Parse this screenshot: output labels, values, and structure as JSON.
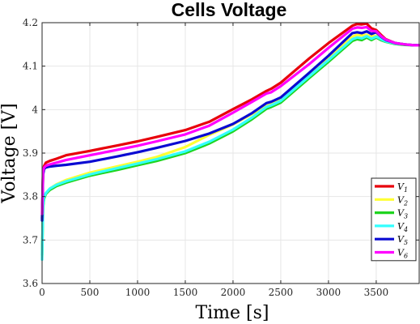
{
  "chart_data": {
    "type": "line",
    "title": "Cells Voltage",
    "xlabel": "Time [s]",
    "ylabel": "Voltage [V]",
    "xlim": [
      0,
      3950
    ],
    "ylim": [
      3.6,
      4.2
    ],
    "xticks": [
      0,
      500,
      1000,
      1500,
      2000,
      2500,
      3000,
      3500
    ],
    "yticks": [
      3.6,
      3.7,
      3.8,
      3.9,
      4.0,
      4.1,
      4.2
    ],
    "xtick_labels": [
      "0",
      "500",
      "1000",
      "1500",
      "2000",
      "2500",
      "3000",
      "3500"
    ],
    "ytick_labels": [
      "3.6",
      "3.7",
      "3.8",
      "3.9",
      "4",
      "4.1",
      "4.2"
    ],
    "grid": true,
    "legend_position": "lower-right",
    "series": [
      {
        "name": "V1",
        "color": "#e8000b",
        "x": [
          0,
          10,
          20,
          40,
          80,
          150,
          250,
          500,
          800,
          1000,
          1200,
          1500,
          1750,
          2000,
          2200,
          2350,
          2400,
          2500,
          2800,
          3000,
          3250,
          3300,
          3350,
          3400,
          3450,
          3500,
          3550,
          3600,
          3700,
          3800,
          3900,
          3950
        ],
        "y": [
          3.75,
          3.855,
          3.87,
          3.878,
          3.882,
          3.887,
          3.895,
          3.905,
          3.918,
          3.927,
          3.937,
          3.953,
          3.972,
          4.001,
          4.024,
          4.043,
          4.048,
          4.062,
          4.118,
          4.153,
          4.193,
          4.197,
          4.196,
          4.198,
          4.187,
          4.183,
          4.172,
          4.162,
          4.153,
          4.15,
          4.148,
          4.148
        ]
      },
      {
        "name": "V2",
        "color": "#ffff33",
        "x": [
          0,
          10,
          20,
          40,
          80,
          150,
          250,
          500,
          800,
          1000,
          1200,
          1500,
          1750,
          2000,
          2200,
          2350,
          2400,
          2500,
          2800,
          3000,
          3250,
          3300,
          3350,
          3400,
          3450,
          3500,
          3550,
          3600,
          3700,
          3800,
          3900,
          3950
        ],
        "y": [
          3.66,
          3.775,
          3.795,
          3.808,
          3.818,
          3.828,
          3.838,
          3.855,
          3.87,
          3.88,
          3.891,
          3.914,
          3.942,
          3.966,
          3.99,
          4.008,
          4.012,
          4.026,
          4.081,
          4.12,
          4.168,
          4.172,
          4.171,
          4.172,
          4.168,
          4.17,
          4.163,
          4.158,
          4.152,
          4.15,
          4.148,
          4.148
        ]
      },
      {
        "name": "V3",
        "color": "#1fd41f",
        "x": [
          0,
          10,
          20,
          40,
          80,
          150,
          250,
          500,
          800,
          1000,
          1200,
          1500,
          1750,
          2000,
          2200,
          2350,
          2400,
          2500,
          2800,
          3000,
          3250,
          3300,
          3350,
          3400,
          3450,
          3500,
          3550,
          3600,
          3700,
          3800,
          3900,
          3950
        ],
        "y": [
          3.665,
          3.775,
          3.795,
          3.806,
          3.815,
          3.824,
          3.832,
          3.848,
          3.862,
          3.872,
          3.882,
          3.9,
          3.922,
          3.95,
          3.978,
          4.002,
          4.006,
          4.016,
          4.073,
          4.11,
          4.158,
          4.162,
          4.16,
          4.166,
          4.16,
          4.166,
          4.16,
          4.156,
          4.151,
          4.149,
          4.148,
          4.148
        ]
      },
      {
        "name": "V4",
        "color": "#33ffff",
        "x": [
          0,
          10,
          20,
          40,
          80,
          150,
          250,
          500,
          800,
          1000,
          1200,
          1500,
          1750,
          2000,
          2200,
          2350,
          2400,
          2500,
          2800,
          3000,
          3250,
          3300,
          3350,
          3400,
          3450,
          3500,
          3550,
          3600,
          3700,
          3800,
          3900,
          3950
        ],
        "y": [
          3.655,
          3.778,
          3.798,
          3.808,
          3.818,
          3.827,
          3.835,
          3.851,
          3.866,
          3.876,
          3.886,
          3.904,
          3.926,
          3.954,
          3.982,
          4.006,
          4.01,
          4.02,
          4.077,
          4.114,
          4.162,
          4.166,
          4.164,
          4.169,
          4.163,
          4.168,
          4.162,
          4.157,
          4.152,
          4.15,
          4.148,
          4.148
        ]
      },
      {
        "name": "V5",
        "color": "#0a0ad2",
        "x": [
          0,
          10,
          20,
          40,
          80,
          150,
          250,
          500,
          800,
          1000,
          1200,
          1500,
          1750,
          2000,
          2200,
          2350,
          2400,
          2500,
          2800,
          3000,
          3250,
          3300,
          3350,
          3400,
          3450,
          3500,
          3550,
          3600,
          3700,
          3800,
          3900,
          3950
        ],
        "y": [
          3.745,
          3.85,
          3.863,
          3.867,
          3.869,
          3.871,
          3.873,
          3.88,
          3.893,
          3.902,
          3.912,
          3.928,
          3.945,
          3.967,
          3.992,
          4.015,
          4.018,
          4.028,
          4.085,
          4.124,
          4.176,
          4.178,
          4.176,
          4.18,
          4.174,
          4.178,
          4.168,
          4.16,
          4.153,
          4.15,
          4.148,
          4.148
        ]
      },
      {
        "name": "V6",
        "color": "#ff00ff",
        "x": [
          0,
          10,
          20,
          40,
          80,
          150,
          250,
          500,
          800,
          1000,
          1200,
          1500,
          1750,
          2000,
          2200,
          2350,
          2400,
          2500,
          2800,
          3000,
          3250,
          3300,
          3350,
          3400,
          3450,
          3500,
          3550,
          3600,
          3700,
          3800,
          3900,
          3950
        ],
        "y": [
          3.76,
          3.858,
          3.866,
          3.871,
          3.874,
          3.878,
          3.884,
          3.895,
          3.908,
          3.917,
          3.927,
          3.943,
          3.963,
          3.993,
          4.018,
          4.037,
          4.04,
          4.054,
          4.105,
          4.142,
          4.186,
          4.189,
          4.188,
          4.19,
          4.181,
          4.18,
          4.169,
          4.161,
          4.153,
          4.15,
          4.148,
          4.148
        ]
      }
    ]
  }
}
